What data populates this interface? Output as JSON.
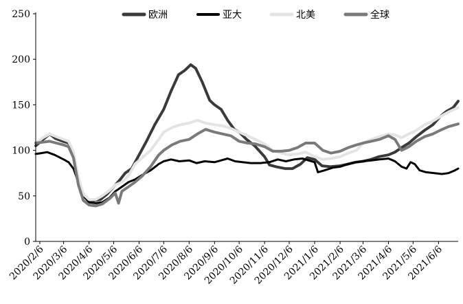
{
  "chart_data": {
    "type": "line",
    "title": "",
    "xlabel": "",
    "ylabel": "",
    "ylim": [
      0,
      250
    ],
    "yticks": [
      0,
      50,
      100,
      150,
      200,
      250
    ],
    "xlim": [
      "2020-02-01",
      "2021-06-30"
    ],
    "xtick_labels": [
      "2020/2/6",
      "2020/3/6",
      "2020/4/6",
      "2020/5/6",
      "2020/6/6",
      "2020/7/6",
      "2020/8/6",
      "2020/9/6",
      "2020/10/6",
      "2020/11/6",
      "2020/12/6",
      "2021/1/6",
      "2021/2/6",
      "2021/3/6",
      "2021/4/6",
      "2021/5/6",
      "2021/6/6"
    ],
    "xtick_dates": [
      "2020-02-06",
      "2020-03-06",
      "2020-04-06",
      "2020-05-06",
      "2020-06-06",
      "2020-07-06",
      "2020-08-06",
      "2020-09-06",
      "2020-10-06",
      "2020-11-06",
      "2020-12-06",
      "2021-01-06",
      "2021-02-06",
      "2021-03-06",
      "2021-04-06",
      "2021-05-06",
      "2021-06-06"
    ],
    "grid": false,
    "legend_position": "top",
    "series": [
      {
        "name": "欧洲",
        "color": "#3a3a3a",
        "points": [
          [
            "2020-02-01",
            105
          ],
          [
            "2020-02-10",
            112
          ],
          [
            "2020-02-18",
            118
          ],
          [
            "2020-02-25",
            113
          ],
          [
            "2020-03-05",
            110
          ],
          [
            "2020-03-12",
            108
          ],
          [
            "2020-03-18",
            95
          ],
          [
            "2020-03-24",
            65
          ],
          [
            "2020-03-30",
            52
          ],
          [
            "2020-04-05",
            46
          ],
          [
            "2020-04-12",
            45
          ],
          [
            "2020-04-20",
            46
          ],
          [
            "2020-04-28",
            52
          ],
          [
            "2020-05-06",
            60
          ],
          [
            "2020-05-14",
            68
          ],
          [
            "2020-05-20",
            75
          ],
          [
            "2020-05-28",
            80
          ],
          [
            "2020-06-06",
            95
          ],
          [
            "2020-06-15",
            110
          ],
          [
            "2020-06-25",
            128
          ],
          [
            "2020-07-06",
            145
          ],
          [
            "2020-07-15",
            165
          ],
          [
            "2020-07-24",
            183
          ],
          [
            "2020-08-01",
            188
          ],
          [
            "2020-08-08",
            194
          ],
          [
            "2020-08-14",
            190
          ],
          [
            "2020-08-22",
            175
          ],
          [
            "2020-08-31",
            155
          ],
          [
            "2020-09-06",
            150
          ],
          [
            "2020-09-14",
            145
          ],
          [
            "2020-09-22",
            133
          ],
          [
            "2020-09-30",
            123
          ],
          [
            "2020-10-06",
            120
          ],
          [
            "2020-10-15",
            112
          ],
          [
            "2020-10-25",
            105
          ],
          [
            "2020-11-06",
            93
          ],
          [
            "2020-11-12",
            84
          ],
          [
            "2020-11-20",
            82
          ],
          [
            "2020-12-01",
            80
          ],
          [
            "2020-12-10",
            80
          ],
          [
            "2020-12-20",
            85
          ],
          [
            "2020-12-28",
            92
          ],
          [
            "2021-01-06",
            90
          ],
          [
            "2021-01-15",
            83
          ],
          [
            "2021-01-25",
            82
          ],
          [
            "2021-02-06",
            83
          ],
          [
            "2021-02-16",
            85
          ],
          [
            "2021-02-25",
            87
          ],
          [
            "2021-03-06",
            88
          ],
          [
            "2021-03-16",
            90
          ],
          [
            "2021-03-25",
            93
          ],
          [
            "2021-04-06",
            95
          ],
          [
            "2021-04-14",
            98
          ],
          [
            "2021-04-22",
            103
          ],
          [
            "2021-05-01",
            108
          ],
          [
            "2021-05-10",
            115
          ],
          [
            "2021-05-20",
            122
          ],
          [
            "2021-05-30",
            128
          ],
          [
            "2021-06-08",
            137
          ],
          [
            "2021-06-16",
            143
          ],
          [
            "2021-06-24",
            147
          ],
          [
            "2021-06-30",
            154
          ]
        ]
      },
      {
        "name": "亚大",
        "color": "#000000",
        "points": [
          [
            "2020-02-01",
            96
          ],
          [
            "2020-02-08",
            97
          ],
          [
            "2020-02-15",
            98
          ],
          [
            "2020-02-24",
            95
          ],
          [
            "2020-03-06",
            90
          ],
          [
            "2020-03-12",
            87
          ],
          [
            "2020-03-18",
            80
          ],
          [
            "2020-03-24",
            65
          ],
          [
            "2020-03-30",
            50
          ],
          [
            "2020-04-06",
            43
          ],
          [
            "2020-04-14",
            42
          ],
          [
            "2020-04-22",
            43
          ],
          [
            "2020-05-01",
            48
          ],
          [
            "2020-05-08",
            55
          ],
          [
            "2020-05-16",
            60
          ],
          [
            "2020-05-24",
            65
          ],
          [
            "2020-06-01",
            68
          ],
          [
            "2020-06-10",
            73
          ],
          [
            "2020-06-20",
            78
          ],
          [
            "2020-06-30",
            85
          ],
          [
            "2020-07-06",
            88
          ],
          [
            "2020-07-15",
            90
          ],
          [
            "2020-07-25",
            88
          ],
          [
            "2020-08-06",
            89
          ],
          [
            "2020-08-15",
            86
          ],
          [
            "2020-08-25",
            88
          ],
          [
            "2020-09-06",
            87
          ],
          [
            "2020-09-14",
            89
          ],
          [
            "2020-09-22",
            91
          ],
          [
            "2020-10-01",
            88
          ],
          [
            "2020-10-10",
            87
          ],
          [
            "2020-10-20",
            86
          ],
          [
            "2020-11-01",
            86
          ],
          [
            "2020-11-12",
            87
          ],
          [
            "2020-11-22",
            90
          ],
          [
            "2020-12-02",
            88
          ],
          [
            "2020-12-12",
            90
          ],
          [
            "2020-12-22",
            91
          ],
          [
            "2021-01-06",
            87
          ],
          [
            "2021-01-10",
            76
          ],
          [
            "2021-01-18",
            78
          ],
          [
            "2021-01-28",
            81
          ],
          [
            "2021-02-06",
            82
          ],
          [
            "2021-02-16",
            85
          ],
          [
            "2021-02-26",
            87
          ],
          [
            "2021-03-06",
            88
          ],
          [
            "2021-03-16",
            89
          ],
          [
            "2021-03-26",
            90
          ],
          [
            "2021-04-06",
            91
          ],
          [
            "2021-04-14",
            88
          ],
          [
            "2021-04-22",
            82
          ],
          [
            "2021-04-28",
            80
          ],
          [
            "2021-05-03",
            87
          ],
          [
            "2021-05-08",
            85
          ],
          [
            "2021-05-14",
            78
          ],
          [
            "2021-05-22",
            76
          ],
          [
            "2021-06-01",
            75
          ],
          [
            "2021-06-10",
            74
          ],
          [
            "2021-06-18",
            75
          ],
          [
            "2021-06-26",
            78
          ],
          [
            "2021-06-30",
            80
          ]
        ]
      },
      {
        "name": "北美",
        "color": "#e4e4e4",
        "points": [
          [
            "2020-02-01",
            108
          ],
          [
            "2020-02-10",
            114
          ],
          [
            "2020-02-18",
            118
          ],
          [
            "2020-02-26",
            115
          ],
          [
            "2020-03-06",
            112
          ],
          [
            "2020-03-12",
            110
          ],
          [
            "2020-03-18",
            98
          ],
          [
            "2020-03-24",
            70
          ],
          [
            "2020-03-30",
            52
          ],
          [
            "2020-04-06",
            46
          ],
          [
            "2020-04-14",
            46
          ],
          [
            "2020-04-22",
            50
          ],
          [
            "2020-05-01",
            56
          ],
          [
            "2020-05-08",
            62
          ],
          [
            "2020-05-16",
            65
          ],
          [
            "2020-05-24",
            72
          ],
          [
            "2020-06-01",
            85
          ],
          [
            "2020-06-10",
            92
          ],
          [
            "2020-06-20",
            100
          ],
          [
            "2020-06-30",
            112
          ],
          [
            "2020-07-06",
            120
          ],
          [
            "2020-07-16",
            125
          ],
          [
            "2020-07-26",
            128
          ],
          [
            "2020-08-06",
            130
          ],
          [
            "2020-08-16",
            133
          ],
          [
            "2020-08-26",
            130
          ],
          [
            "2020-09-06",
            128
          ],
          [
            "2020-09-16",
            127
          ],
          [
            "2020-09-26",
            124
          ],
          [
            "2020-10-06",
            120
          ],
          [
            "2020-10-16",
            116
          ],
          [
            "2020-10-26",
            112
          ],
          [
            "2020-11-06",
            107
          ],
          [
            "2020-11-16",
            100
          ],
          [
            "2020-11-26",
            97
          ],
          [
            "2020-12-06",
            95
          ],
          [
            "2020-12-16",
            96
          ],
          [
            "2020-12-26",
            98
          ],
          [
            "2021-01-06",
            93
          ],
          [
            "2021-01-16",
            90
          ],
          [
            "2021-01-26",
            91
          ],
          [
            "2021-02-06",
            93
          ],
          [
            "2021-02-16",
            97
          ],
          [
            "2021-02-26",
            100
          ],
          [
            "2021-03-06",
            108
          ],
          [
            "2021-03-16",
            112
          ],
          [
            "2021-03-26",
            115
          ],
          [
            "2021-04-06",
            118
          ],
          [
            "2021-04-14",
            117
          ],
          [
            "2021-04-22",
            114
          ],
          [
            "2021-05-01",
            118
          ],
          [
            "2021-05-10",
            122
          ],
          [
            "2021-05-20",
            128
          ],
          [
            "2021-05-30",
            132
          ],
          [
            "2021-06-08",
            137
          ],
          [
            "2021-06-18",
            142
          ],
          [
            "2021-06-30",
            147
          ]
        ]
      },
      {
        "name": "全球",
        "color": "#7a7a7a",
        "points": [
          [
            "2020-02-01",
            108
          ],
          [
            "2020-02-10",
            109
          ],
          [
            "2020-02-18",
            110
          ],
          [
            "2020-02-26",
            108
          ],
          [
            "2020-03-06",
            106
          ],
          [
            "2020-03-12",
            104
          ],
          [
            "2020-03-18",
            92
          ],
          [
            "2020-03-24",
            62
          ],
          [
            "2020-03-30",
            45
          ],
          [
            "2020-04-06",
            40
          ],
          [
            "2020-04-14",
            39
          ],
          [
            "2020-04-22",
            41
          ],
          [
            "2020-05-01",
            47
          ],
          [
            "2020-05-08",
            53
          ],
          [
            "2020-05-12",
            42
          ],
          [
            "2020-05-16",
            55
          ],
          [
            "2020-05-24",
            60
          ],
          [
            "2020-06-01",
            65
          ],
          [
            "2020-06-10",
            72
          ],
          [
            "2020-06-20",
            82
          ],
          [
            "2020-06-30",
            95
          ],
          [
            "2020-07-06",
            100
          ],
          [
            "2020-07-16",
            106
          ],
          [
            "2020-07-26",
            110
          ],
          [
            "2020-08-06",
            112
          ],
          [
            "2020-08-16",
            118
          ],
          [
            "2020-08-26",
            123
          ],
          [
            "2020-09-06",
            120
          ],
          [
            "2020-09-16",
            118
          ],
          [
            "2020-09-26",
            116
          ],
          [
            "2020-10-06",
            110
          ],
          [
            "2020-10-16",
            108
          ],
          [
            "2020-10-26",
            107
          ],
          [
            "2020-11-06",
            104
          ],
          [
            "2020-11-16",
            99
          ],
          [
            "2020-11-26",
            99
          ],
          [
            "2020-12-06",
            100
          ],
          [
            "2020-12-16",
            103
          ],
          [
            "2020-12-26",
            108
          ],
          [
            "2021-01-06",
            108
          ],
          [
            "2021-01-16",
            100
          ],
          [
            "2021-01-26",
            97
          ],
          [
            "2021-02-06",
            99
          ],
          [
            "2021-02-16",
            103
          ],
          [
            "2021-02-26",
            106
          ],
          [
            "2021-03-06",
            108
          ],
          [
            "2021-03-16",
            110
          ],
          [
            "2021-03-26",
            112
          ],
          [
            "2021-04-06",
            116
          ],
          [
            "2021-04-14",
            112
          ],
          [
            "2021-04-22",
            100
          ],
          [
            "2021-05-01",
            104
          ],
          [
            "2021-05-10",
            110
          ],
          [
            "2021-05-20",
            115
          ],
          [
            "2021-05-30",
            118
          ],
          [
            "2021-06-08",
            122
          ],
          [
            "2021-06-18",
            126
          ],
          [
            "2021-06-30",
            129
          ]
        ]
      }
    ]
  }
}
